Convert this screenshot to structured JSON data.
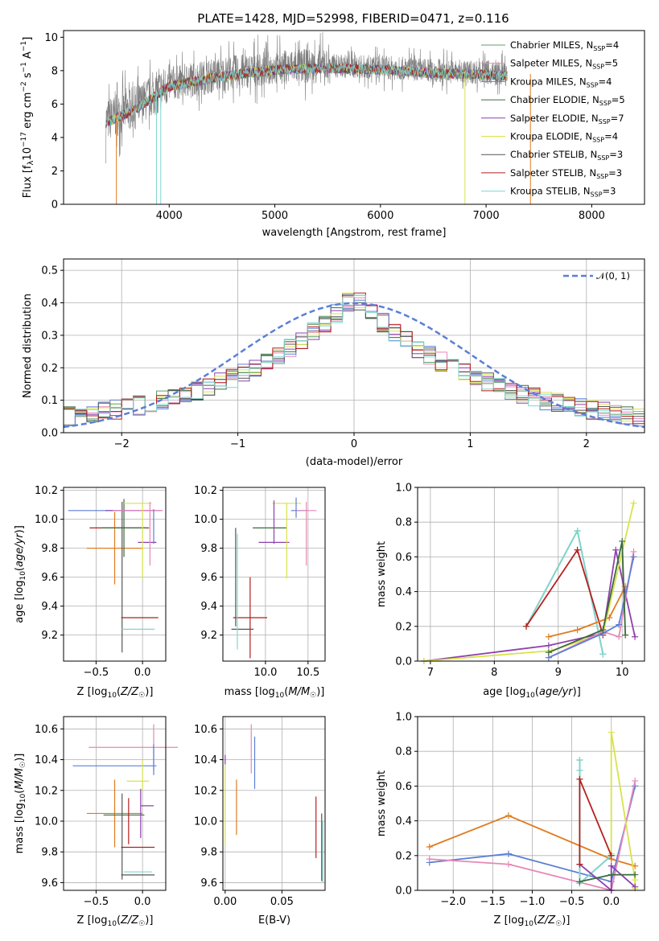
{
  "chart_data": [
    {
      "type": "line",
      "title": "PLATE=1428, MJD=52998, FIBERID=0471, z=0.116",
      "xlabel": "wavelength [Angstrom, rest frame]",
      "ylabel": "Flux [f_λ10^-17 erg cm^-2 s^-1 A^-1]",
      "xlim": [
        3000,
        8500
      ],
      "ylim": [
        0,
        10.4
      ],
      "xticks": [
        "4000",
        "5000",
        "6000",
        "7000",
        "8000"
      ],
      "yticks": [
        "0",
        "2",
        "4",
        "6",
        "8",
        "10"
      ],
      "legend_position": "right",
      "series": [
        {
          "name": "Chabrier MILES, N_SSP=4",
          "color": "#5f9e6e"
        },
        {
          "name": "Salpeter MILES, N_SSP=5",
          "color": "#e788b8"
        },
        {
          "name": "Kroupa MILES, N_SSP=4",
          "color": "#5b7fd6"
        },
        {
          "name": "Chabrier ELODIE, N_SSP=5",
          "color": "#3c6b3c"
        },
        {
          "name": "Salpeter ELODIE, N_SSP=7",
          "color": "#8f3fae"
        },
        {
          "name": "Kroupa ELODIE, N_SSP=4",
          "color": "#d7e34a"
        },
        {
          "name": "Chabrier STELIB, N_SSP=3",
          "color": "#555555"
        },
        {
          "name": "Salpeter STELIB, N_SSP=3",
          "color": "#b51f1f"
        },
        {
          "name": "Kroupa STELIB, N_SSP=3",
          "color": "#7fd6d0"
        }
      ],
      "data_color": "#7f7f7f",
      "continuum": {
        "x": [
          3400,
          3500,
          3700,
          4000,
          4500,
          5000,
          5500,
          6000,
          6500,
          7000,
          7200
        ],
        "y": [
          5.0,
          5.3,
          5.9,
          7.2,
          7.8,
          8.2,
          8.3,
          8.2,
          8.0,
          7.9,
          7.8
        ]
      }
    },
    {
      "type": "line",
      "xlabel": "(data-model)/error",
      "ylabel": "Normed distribution",
      "xlim": [
        -2.5,
        2.5
      ],
      "ylim": [
        0,
        0.535
      ],
      "xticks": [
        "−2",
        "−1",
        "0",
        "1",
        "2"
      ],
      "yticks": [
        "0.0",
        "0.1",
        "0.2",
        "0.3",
        "0.4",
        "0.5"
      ],
      "grid": true,
      "legend_position": "top-right",
      "gaussian_label": "𝒩(0, 1)",
      "gaussian_color": "#5b7fd6",
      "hist_bin_width": 0.1
    },
    {
      "type": "scatter",
      "xlabel": "Z [log10(Z/Z☉)]",
      "ylabel": "age [log10(age/yr)]",
      "xlim": [
        -0.85,
        0.25
      ],
      "ylim": [
        9.02,
        10.22
      ],
      "xticks": [
        "−0.5",
        "0.0"
      ],
      "yticks": [
        "9.2",
        "9.4",
        "9.6",
        "9.8",
        "10.0",
        "10.2"
      ],
      "grid": true,
      "points": [
        {
          "x": -0.25,
          "y": 9.94,
          "xe": 0.32,
          "ye": 0.0,
          "color": "#b51f1f"
        },
        {
          "x": -0.3,
          "y": 9.8,
          "xe": 0.3,
          "ye": 0.25,
          "color": "#e07b1f"
        },
        {
          "x": -0.2,
          "y": 9.94,
          "xe": 0.24,
          "ye": 0.2,
          "color": "#3c6b3c"
        },
        {
          "x": -0.22,
          "y": 9.6,
          "xe": 0.0,
          "ye": 0.52,
          "color": "#555555"
        },
        {
          "x": -0.35,
          "y": 10.06,
          "xe": 0.45,
          "ye": 0.0,
          "color": "#5b7fd6"
        },
        {
          "x": -0.1,
          "y": 10.06,
          "xe": 0.3,
          "ye": 0.0,
          "color": "#8f3fae"
        },
        {
          "x": -0.05,
          "y": 10.06,
          "xe": 0.27,
          "ye": 0.0,
          "color": "#e788b8"
        },
        {
          "x": -0.05,
          "y": 10.11,
          "xe": 0.15,
          "ye": 0.0,
          "color": "#d7e34a"
        },
        {
          "x": 0.05,
          "y": 9.84,
          "xe": 0.1,
          "ye": 0.0,
          "color": "#8f3fae"
        },
        {
          "x": -0.05,
          "y": 9.24,
          "xe": 0.18,
          "ye": 0.0,
          "color": "#7fd6d0"
        },
        {
          "x": -0.03,
          "y": 9.32,
          "xe": 0.2,
          "ye": 0.0,
          "color": "#b51f1f"
        },
        {
          "x": 0.0,
          "y": 9.85,
          "xe": 0.0,
          "ye": 0.26,
          "color": "#d7e34a"
        },
        {
          "x": 0.08,
          "y": 9.9,
          "xe": 0.0,
          "ye": 0.22,
          "color": "#e788b8"
        },
        {
          "x": 0.12,
          "y": 9.95,
          "xe": 0.0,
          "ye": 0.12,
          "color": "#5b7fd6"
        }
      ]
    },
    {
      "type": "scatter",
      "xlabel": "mass [log10(M/M☉)]",
      "xlim": [
        9.5,
        10.7
      ],
      "ylim": [
        9.02,
        10.22
      ],
      "xticks": [
        "10.0",
        "10.5"
      ],
      "yticks": [
        "9.2",
        "9.4",
        "9.6",
        "9.8",
        "10.0",
        "10.2"
      ],
      "grid": true,
      "points": [
        {
          "x": 9.82,
          "y": 9.32,
          "xe": 0.2,
          "ye": 0.28,
          "color": "#b51f1f"
        },
        {
          "x": 9.73,
          "y": 9.24,
          "xe": 0.13,
          "ye": 0.0,
          "color": "#555555"
        },
        {
          "x": 9.65,
          "y": 9.6,
          "xe": 0.0,
          "ye": 0.34,
          "color": "#555555"
        },
        {
          "x": 9.67,
          "y": 9.5,
          "xe": 0.0,
          "ye": 0.4,
          "color": "#7fd6d0"
        },
        {
          "x": 10.05,
          "y": 9.94,
          "xe": 0.2,
          "ye": 0.0,
          "color": "#3c6b3c"
        },
        {
          "x": 10.1,
          "y": 9.84,
          "xe": 0.18,
          "ye": 0.0,
          "color": "#8f3fae"
        },
        {
          "x": 10.25,
          "y": 10.11,
          "xe": 0.17,
          "ye": 0.0,
          "color": "#d7e34a"
        },
        {
          "x": 10.25,
          "y": 9.85,
          "xe": 0.0,
          "ye": 0.26,
          "color": "#d7e34a"
        },
        {
          "x": 10.1,
          "y": 9.98,
          "xe": 0.0,
          "ye": 0.15,
          "color": "#8f3fae"
        },
        {
          "x": 10.4,
          "y": 10.06,
          "xe": 0.1,
          "ye": 0.0,
          "color": "#5b7fd6"
        },
        {
          "x": 10.48,
          "y": 10.06,
          "xe": 0.12,
          "ye": 0.0,
          "color": "#e788b8"
        },
        {
          "x": 10.48,
          "y": 9.9,
          "xe": 0.0,
          "ye": 0.22,
          "color": "#e788b8"
        },
        {
          "x": 10.36,
          "y": 10.08,
          "xe": 0.0,
          "ye": 0.07,
          "color": "#5b7fd6"
        }
      ]
    },
    {
      "type": "line",
      "xlabel": "age [log10(age/yr)]",
      "ylabel": "mass weight",
      "xlim": [
        6.8,
        10.35
      ],
      "ylim": [
        0,
        1.0
      ],
      "xticks": [
        "7",
        "8",
        "9",
        "10"
      ],
      "yticks": [
        "0.0",
        "0.2",
        "0.4",
        "0.6",
        "0.8",
        "1.0"
      ],
      "grid": true,
      "series": [
        {
          "color": "#5f9e6e",
          "x": [
            8.5,
            9.3,
            9.7
          ],
          "y": [
            0.2,
            0.75,
            0.04
          ]
        },
        {
          "color": "#7fd6d0",
          "x": [
            8.5,
            9.3,
            9.7
          ],
          "y": [
            0.2,
            0.75,
            0.04
          ]
        },
        {
          "color": "#b51f1f",
          "x": [
            8.5,
            9.3,
            9.7
          ],
          "y": [
            0.2,
            0.64,
            0.15
          ]
        },
        {
          "color": "#e07b1f",
          "x": [
            8.85,
            9.3,
            9.8,
            10.05
          ],
          "y": [
            0.14,
            0.18,
            0.25,
            0.43
          ]
        },
        {
          "color": "#8f3fae",
          "x": [
            6.9,
            8.85,
            9.7,
            9.9,
            10.2
          ],
          "y": [
            0.0,
            0.09,
            0.16,
            0.64,
            0.14
          ]
        },
        {
          "color": "#d7e34a",
          "x": [
            6.9,
            8.9,
            9.7,
            10.18
          ],
          "y": [
            0.0,
            0.06,
            0.16,
            0.91
          ]
        },
        {
          "color": "#e788b8",
          "x": [
            8.85,
            9.7,
            9.95,
            10.18
          ],
          "y": [
            0.02,
            0.17,
            0.14,
            0.63
          ]
        },
        {
          "color": "#5b7fd6",
          "x": [
            8.85,
            9.7,
            9.95,
            10.18
          ],
          "y": [
            0.02,
            0.16,
            0.21,
            0.6
          ]
        },
        {
          "color": "#3c6b3c",
          "x": [
            8.85,
            9.7,
            10.0,
            10.05
          ],
          "y": [
            0.05,
            0.18,
            0.69,
            0.15
          ]
        }
      ]
    },
    {
      "type": "scatter",
      "xlabel": "Z [log10(Z/Z☉)]",
      "ylabel": "mass [log10(M/M☉)]",
      "xlim": [
        -0.85,
        0.25
      ],
      "ylim": [
        9.55,
        10.68
      ],
      "xticks": [
        "−0.5",
        "0.0"
      ],
      "yticks": [
        "9.6",
        "9.8",
        "10.0",
        "10.2",
        "10.4",
        "10.6"
      ],
      "grid": true,
      "points": [
        {
          "x": -0.1,
          "y": 10.48,
          "xe": 0.48,
          "ye": 0.0,
          "color": "#e788b8"
        },
        {
          "x": 0.12,
          "y": 10.48,
          "xe": 0.0,
          "ye": 0.15,
          "color": "#e788b8"
        },
        {
          "x": -0.3,
          "y": 10.36,
          "xe": 0.45,
          "ye": 0.0,
          "color": "#5b7fd6"
        },
        {
          "x": 0.12,
          "y": 10.4,
          "xe": 0.0,
          "ye": 0.1,
          "color": "#5b7fd6"
        },
        {
          "x": -0.05,
          "y": 10.26,
          "xe": 0.12,
          "ye": 0.0,
          "color": "#d7e34a"
        },
        {
          "x": -0.3,
          "y": 10.05,
          "xe": 0.3,
          "ye": 0.0,
          "color": "#e07b1f"
        },
        {
          "x": -0.3,
          "y": 10.05,
          "xe": 0.0,
          "ye": 0.22,
          "color": "#e07b1f"
        },
        {
          "x": -0.2,
          "y": 10.04,
          "xe": 0.22,
          "ye": 0.0,
          "color": "#3c6b3c"
        },
        {
          "x": -0.22,
          "y": 9.9,
          "xe": 0.0,
          "ye": 0.28,
          "color": "#555555"
        },
        {
          "x": -0.15,
          "y": 10.0,
          "xe": 0.0,
          "ye": 0.15,
          "color": "#b51f1f"
        },
        {
          "x": 0.05,
          "y": 10.1,
          "xe": 0.07,
          "ye": 0.0,
          "color": "#8f3fae"
        },
        {
          "x": -0.02,
          "y": 10.05,
          "xe": 0.0,
          "ye": 0.16,
          "color": "#8f3fae"
        },
        {
          "x": -0.05,
          "y": 9.83,
          "xe": 0.18,
          "ye": 0.0,
          "color": "#b51f1f"
        },
        {
          "x": -0.05,
          "y": 9.67,
          "xe": 0.15,
          "ye": 0.0,
          "color": "#7fd6d0"
        },
        {
          "x": -0.05,
          "y": 9.65,
          "xe": 0.18,
          "ye": 0.0,
          "color": "#555555"
        },
        {
          "x": 0.0,
          "y": 10.3,
          "xe": 0.0,
          "ye": 0.1,
          "color": "#d7e34a"
        }
      ]
    },
    {
      "type": "scatter",
      "xlabel": "E(B-V)",
      "xlim": [
        -0.002,
        0.088
      ],
      "ylim": [
        9.55,
        10.68
      ],
      "xticks": [
        "0.00",
        "0.05"
      ],
      "yticks": [
        "9.6",
        "9.8",
        "10.0",
        "10.2",
        "10.4",
        "10.6"
      ],
      "grid": true,
      "points": [
        {
          "x": 0.0,
          "y": 10.4,
          "xe": 0.0,
          "ye": 0.03,
          "color": "#8f3fae"
        },
        {
          "x": 0.0,
          "y": 10.1,
          "xe": 0.0,
          "ye": 0.26,
          "color": "#d7e34a"
        },
        {
          "x": 0.01,
          "y": 10.09,
          "xe": 0.0,
          "ye": 0.18,
          "color": "#e07b1f"
        },
        {
          "x": 0.023,
          "y": 10.47,
          "xe": 0.0,
          "ye": 0.16,
          "color": "#e788b8"
        },
        {
          "x": 0.026,
          "y": 10.38,
          "xe": 0.0,
          "ye": 0.17,
          "color": "#5b7fd6"
        },
        {
          "x": 0.08,
          "y": 9.96,
          "xe": 0.0,
          "ye": 0.2,
          "color": "#b51f1f"
        },
        {
          "x": 0.085,
          "y": 9.83,
          "xe": 0.0,
          "ye": 0.22,
          "color": "#555555"
        },
        {
          "x": 0.086,
          "y": 9.8,
          "xe": 0.0,
          "ye": 0.2,
          "color": "#7fd6d0"
        }
      ]
    },
    {
      "type": "line",
      "xlabel": "Z [log10(Z/Z☉)]",
      "ylabel": "mass weight",
      "xlim": [
        -2.45,
        0.42
      ],
      "ylim": [
        0,
        1.0
      ],
      "xticks": [
        "−2.0",
        "−1.5",
        "−1.0",
        "−0.5",
        "0.0"
      ],
      "yticks": [
        "0.0",
        "0.2",
        "0.4",
        "0.6",
        "0.8",
        "1.0"
      ],
      "grid": true,
      "series": [
        {
          "color": "#e07b1f",
          "x": [
            -2.3,
            -1.3,
            0.0,
            0.3
          ],
          "y": [
            0.25,
            0.43,
            0.18,
            0.14
          ]
        },
        {
          "color": "#5b7fd6",
          "x": [
            -2.3,
            -1.3,
            0.0,
            0.3
          ],
          "y": [
            0.16,
            0.21,
            0.05,
            0.6
          ]
        },
        {
          "color": "#e788b8",
          "x": [
            -2.3,
            -1.3,
            0.0,
            0.3
          ],
          "y": [
            0.18,
            0.15,
            0.0,
            0.63
          ]
        },
        {
          "color": "#5f9e6e",
          "x": [
            -0.4,
            -0.4,
            -0.4,
            0.0
          ],
          "y": [
            0.75,
            0.69,
            0.04,
            0.2
          ]
        },
        {
          "color": "#7fd6d0",
          "x": [
            -0.4,
            -0.4,
            -0.4,
            0.0
          ],
          "y": [
            0.75,
            0.69,
            0.04,
            0.2
          ]
        },
        {
          "color": "#d7e34a",
          "x": [
            0.0,
            0.0,
            0.3,
            0.3
          ],
          "y": [
            0.21,
            0.91,
            0.06,
            0.01
          ]
        },
        {
          "color": "#8f3fae",
          "x": [
            -0.4,
            0.0,
            0.0,
            0.3
          ],
          "y": [
            0.15,
            0.0,
            0.14,
            0.02
          ]
        },
        {
          "color": "#b51f1f",
          "x": [
            -0.4,
            -0.4,
            0.0
          ],
          "y": [
            0.15,
            0.64,
            0.2
          ]
        },
        {
          "color": "#3c6b3c",
          "x": [
            -0.4,
            0.0,
            0.3
          ],
          "y": [
            0.05,
            0.09,
            0.09
          ]
        }
      ]
    }
  ]
}
